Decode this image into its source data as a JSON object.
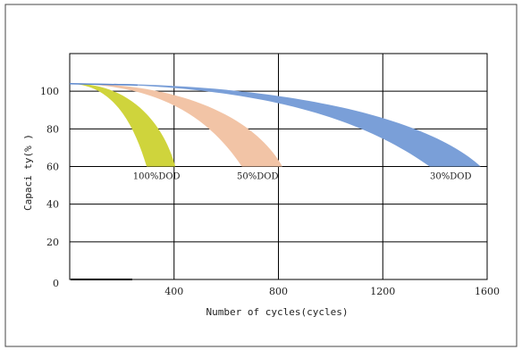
{
  "chart_data": {
    "type": "area",
    "title": "",
    "xlabel": "Number of cycles(cycles)",
    "ylabel": "Capaci ty(% )",
    "xlim": [
      0,
      1600
    ],
    "ylim": [
      0,
      120
    ],
    "x_ticks": [
      400,
      800,
      1200,
      1600
    ],
    "y_ticks": [
      20,
      40,
      60,
      80,
      100
    ],
    "origin_label": "0",
    "grid": true,
    "series": [
      {
        "name": "100%DOD",
        "color": "#cfd43c",
        "start": [
          0,
          104
        ],
        "end_range": [
          295,
          405
        ],
        "end_capacity": 60
      },
      {
        "name": "50%DOD",
        "color": "#f2c4a6",
        "start": [
          0,
          104
        ],
        "end_range": [
          660,
          815
        ],
        "end_capacity": 60
      },
      {
        "name": "30%DOD",
        "color": "#7a9fd8",
        "start": [
          0,
          104
        ],
        "end_range": [
          1380,
          1575
        ],
        "end_capacity": 60
      }
    ]
  }
}
